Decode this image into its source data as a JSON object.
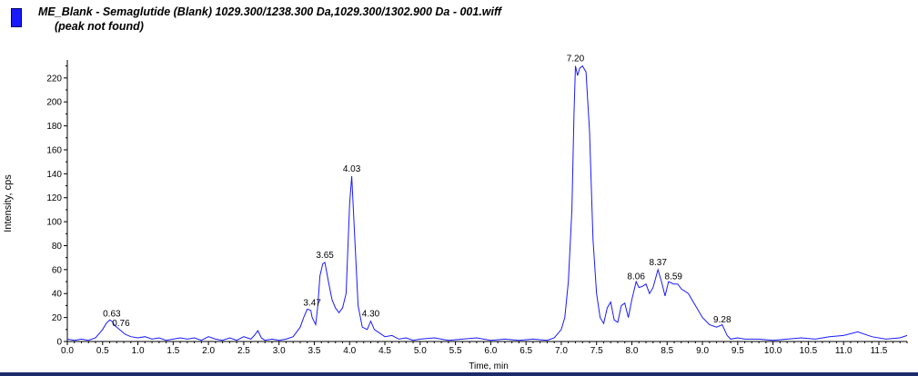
{
  "header": {
    "legend_color": "#1a1aff",
    "title": "ME_Blank - Semaglutide (Blank) 1029.300/1238.300 Da,1029.300/1302.900 Da - 001.wiff",
    "status": "(peak not found)"
  },
  "chart_data": {
    "type": "line",
    "title": "ME_Blank - Semaglutide (Blank) 1029.300/1238.300 Da,1029.300/1302.900 Da - 001.wiff",
    "xlabel": "Time, min",
    "ylabel": "Intensity, cps",
    "xlim": [
      0,
      11.9
    ],
    "ylim": [
      0,
      232
    ],
    "x_ticks": [
      "0.0",
      "0.5",
      "1.0",
      "1.5",
      "2.0",
      "2.5",
      "3.0",
      "3.5",
      "4.0",
      "4.5",
      "5.0",
      "5.5",
      "6.0",
      "6.5",
      "7.0",
      "7.5",
      "8.0",
      "8.5",
      "9.0",
      "9.5",
      "10.0",
      "10.5",
      "11.0",
      "11.5"
    ],
    "y_ticks": [
      "0",
      "20",
      "40",
      "60",
      "80",
      "100",
      "120",
      "140",
      "160",
      "180",
      "200",
      "220"
    ],
    "line_color": "#1a1aff",
    "grid": false,
    "series": [
      {
        "x": [
          0.0,
          0.1,
          0.2,
          0.3,
          0.4,
          0.5,
          0.55,
          0.6,
          0.63,
          0.68,
          0.72,
          0.76,
          0.82,
          0.9,
          1.0,
          1.1,
          1.2,
          1.3,
          1.4,
          1.5,
          1.6,
          1.7,
          1.8,
          1.9,
          2.0,
          2.1,
          2.2,
          2.3,
          2.4,
          2.5,
          2.6,
          2.65,
          2.7,
          2.75,
          2.8,
          2.9,
          3.0,
          3.1,
          3.2,
          3.3,
          3.35,
          3.4,
          3.45,
          3.47,
          3.52,
          3.55,
          3.58,
          3.62,
          3.65,
          3.7,
          3.75,
          3.8,
          3.85,
          3.9,
          3.95,
          4.0,
          4.03,
          4.07,
          4.12,
          4.18,
          4.25,
          4.3,
          4.35,
          4.4,
          4.5,
          4.6,
          4.7,
          4.8,
          4.9,
          5.0,
          5.2,
          5.4,
          5.6,
          5.8,
          6.0,
          6.2,
          6.4,
          6.6,
          6.8,
          6.9,
          7.0,
          7.05,
          7.1,
          7.15,
          7.18,
          7.2,
          7.23,
          7.26,
          7.3,
          7.35,
          7.4,
          7.45,
          7.5,
          7.55,
          7.6,
          7.65,
          7.7,
          7.75,
          7.8,
          7.85,
          7.9,
          7.95,
          8.0,
          8.06,
          8.1,
          8.15,
          8.2,
          8.25,
          8.3,
          8.37,
          8.42,
          8.47,
          8.52,
          8.59,
          8.65,
          8.7,
          8.8,
          8.9,
          9.0,
          9.1,
          9.2,
          9.28,
          9.35,
          9.4,
          9.5,
          9.6,
          9.8,
          10.0,
          10.2,
          10.4,
          10.6,
          10.8,
          11.0,
          11.2,
          11.4,
          11.6,
          11.8,
          11.9
        ],
        "y": [
          2,
          1,
          2,
          1,
          3,
          10,
          15,
          18,
          17,
          13,
          11,
          9,
          6,
          4,
          3,
          4,
          2,
          3,
          1,
          2,
          3,
          2,
          3,
          1,
          4,
          2,
          1,
          3,
          1,
          4,
          2,
          5,
          9,
          3,
          1,
          2,
          1,
          2,
          4,
          12,
          20,
          27,
          26,
          20,
          14,
          30,
          55,
          65,
          66,
          50,
          35,
          28,
          24,
          28,
          40,
          115,
          138,
          90,
          30,
          12,
          10,
          17,
          10,
          8,
          4,
          5,
          2,
          3,
          1,
          2,
          3,
          1,
          2,
          3,
          1,
          2,
          1,
          2,
          1,
          3,
          10,
          20,
          50,
          110,
          190,
          230,
          222,
          228,
          230,
          225,
          175,
          85,
          40,
          20,
          15,
          28,
          33,
          18,
          16,
          30,
          32,
          20,
          35,
          50,
          45,
          46,
          48,
          40,
          45,
          60,
          50,
          38,
          50,
          48,
          48,
          44,
          40,
          30,
          20,
          14,
          12,
          14,
          5,
          2,
          3,
          2,
          2,
          1,
          2,
          3,
          2,
          4,
          5,
          8,
          4,
          2,
          3,
          5
        ]
      }
    ],
    "peak_labels": [
      {
        "x": 0.63,
        "y": 17,
        "text": "0.63"
      },
      {
        "x": 0.76,
        "y": 9,
        "text": "0.76"
      },
      {
        "x": 3.47,
        "y": 26,
        "text": "3.47"
      },
      {
        "x": 3.65,
        "y": 66,
        "text": "3.65"
      },
      {
        "x": 4.03,
        "y": 138,
        "text": "4.03"
      },
      {
        "x": 4.3,
        "y": 17,
        "text": "4.30"
      },
      {
        "x": 7.2,
        "y": 230,
        "text": "7.20"
      },
      {
        "x": 8.06,
        "y": 48,
        "text": "8.06"
      },
      {
        "x": 8.37,
        "y": 60,
        "text": "8.37"
      },
      {
        "x": 8.59,
        "y": 48,
        "text": "8.59"
      },
      {
        "x": 9.28,
        "y": 12,
        "text": "9.28"
      }
    ]
  }
}
